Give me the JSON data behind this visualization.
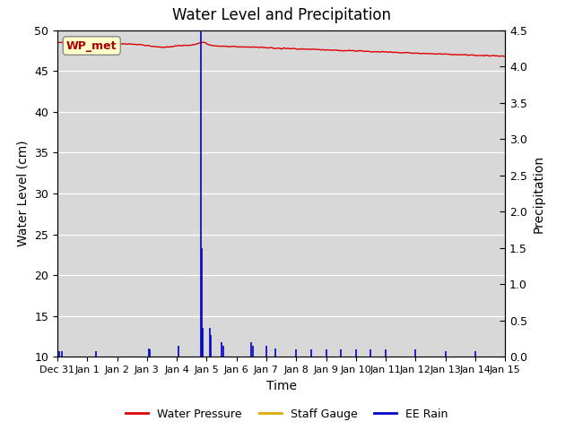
{
  "title": "Water Level and Precipitation",
  "xlabel": "Time",
  "ylabel_left": "Water Level (cm)",
  "ylabel_right": "Precipitation",
  "left_ylim": [
    10,
    50
  ],
  "right_ylim": [
    0.0,
    4.5
  ],
  "left_yticks": [
    10,
    15,
    20,
    25,
    30,
    35,
    40,
    45,
    50
  ],
  "right_yticks": [
    0.0,
    0.5,
    1.0,
    1.5,
    2.0,
    2.5,
    3.0,
    3.5,
    4.0,
    4.5
  ],
  "background_color": "#d8d8d8",
  "fig_background": "#ffffff",
  "wp_label": "WP_met",
  "wp_label_color": "#aa0000",
  "wp_label_bg": "#ffffcc",
  "wp_label_edge": "#888888",
  "water_pressure_color": "#dd0000",
  "staff_gauge_color": "#ddaa00",
  "ee_rain_color": "#0000cc",
  "legend_entries": [
    "Water Pressure",
    "Staff Gauge",
    "EE Rain"
  ],
  "x_tick_labels": [
    "Dec 31",
    "Jan 1",
    "Jan 2",
    "Jan 3",
    "Jan 4",
    "Jan 5",
    "Jan 6",
    "Jan 7",
    "Jan 8",
    "Jan 9",
    "Jan 10",
    "Jan 11",
    "Jan 12",
    "Jan 13",
    "Jan 14",
    "Jan 15"
  ],
  "rain_times": [
    0.05,
    0.15,
    1.3,
    3.05,
    3.1,
    4.05,
    4.82,
    4.85,
    4.87,
    5.1,
    5.15,
    5.5,
    5.55,
    6.5,
    6.55,
    7.0,
    7.3,
    8.0,
    8.5,
    9.0,
    9.5,
    10.0,
    10.5,
    11.0,
    12.0,
    13.0,
    14.0
  ],
  "rain_vals": [
    0.08,
    0.08,
    0.08,
    0.12,
    0.1,
    0.15,
    4.5,
    1.5,
    0.4,
    0.4,
    0.3,
    0.2,
    0.15,
    0.2,
    0.15,
    0.15,
    0.12,
    0.1,
    0.1,
    0.1,
    0.1,
    0.1,
    0.1,
    0.1,
    0.1,
    0.08,
    0.08
  ]
}
